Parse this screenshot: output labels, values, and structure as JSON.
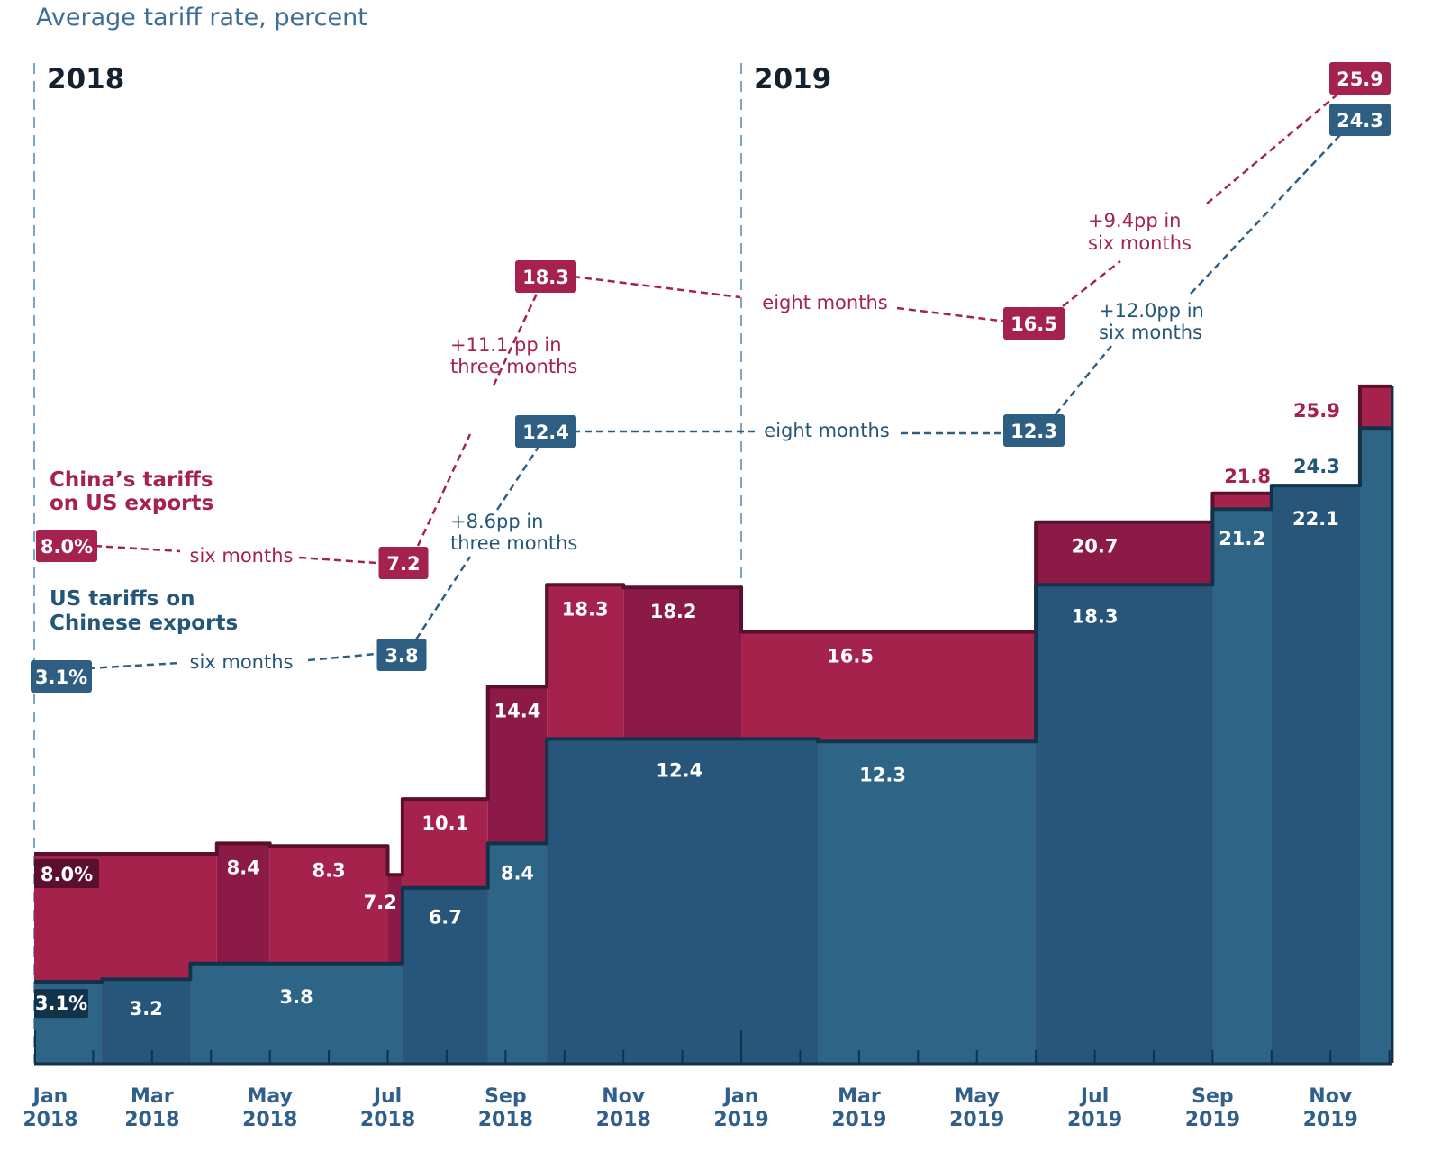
{
  "chart_data": {
    "type": "area",
    "subtype": "overlapping step area",
    "title": "Average tariff rate, percent",
    "xlabel": "",
    "ylabel": "Average tariff rate, percent",
    "x_range": [
      "Jan 2018",
      "Dec 2019"
    ],
    "ylim": [
      0,
      27
    ],
    "grid": false,
    "year_markers": [
      {
        "label": "2018",
        "month_index": 0
      },
      {
        "label": "2019",
        "month_index": 12
      }
    ],
    "x_ticks": [
      {
        "month": "Jan",
        "year": "2018",
        "month_index": 0
      },
      {
        "month": "Mar",
        "year": "2018",
        "month_index": 2
      },
      {
        "month": "May",
        "year": "2018",
        "month_index": 4
      },
      {
        "month": "Jul",
        "year": "2018",
        "month_index": 6
      },
      {
        "month": "Sep",
        "year": "2018",
        "month_index": 8
      },
      {
        "month": "Nov",
        "year": "2018",
        "month_index": 10
      },
      {
        "month": "Jan",
        "year": "2019",
        "month_index": 12
      },
      {
        "month": "Mar",
        "year": "2019",
        "month_index": 14
      },
      {
        "month": "May",
        "year": "2019",
        "month_index": 16
      },
      {
        "month": "Jul",
        "year": "2019",
        "month_index": 18
      },
      {
        "month": "Sep",
        "year": "2019",
        "month_index": 20
      },
      {
        "month": "Nov",
        "year": "2019",
        "month_index": 22
      }
    ],
    "series": [
      {
        "name": "China's tariffs on US exports",
        "legend_lines": [
          "China’s tariffs",
          "on US exports"
        ],
        "color": "#a5224c",
        "color_alt": "#8c1a47",
        "outline": "#5a0f2c",
        "steps": [
          {
            "start": 0,
            "end": 3.1,
            "value": 8.0,
            "label": "8.0%"
          },
          {
            "start": 3.1,
            "end": 4.0,
            "value": 8.4,
            "label": "8.4"
          },
          {
            "start": 4.0,
            "end": 6.0,
            "value": 8.3,
            "label": "8.3"
          },
          {
            "start": 6.0,
            "end": 6.25,
            "value": 7.2,
            "label": "7.2"
          },
          {
            "start": 6.25,
            "end": 7.7,
            "value": 10.1,
            "label": "10.1"
          },
          {
            "start": 7.7,
            "end": 8.7,
            "value": 14.4,
            "label": "14.4"
          },
          {
            "start": 8.7,
            "end": 10.0,
            "value": 18.3,
            "label": "18.3"
          },
          {
            "start": 10.0,
            "end": 12.0,
            "value": 18.2,
            "label": "18.2"
          },
          {
            "start": 12.0,
            "end": 17.0,
            "value": 16.5,
            "label": "16.5"
          },
          {
            "start": 17.0,
            "end": 20.0,
            "value": 20.7,
            "label": "20.7"
          },
          {
            "start": 20.0,
            "end": 21.0,
            "value": 21.8,
            "label": "21.8"
          },
          {
            "start": 21.0,
            "end": 22.5,
            "value": 21.8,
            "label": ""
          },
          {
            "start": 22.5,
            "end": 23.05,
            "value": 25.9,
            "label": "25.9"
          }
        ]
      },
      {
        "name": "US tariffs on Chinese exports",
        "legend_lines": [
          "US tariffs on",
          "Chinese exports"
        ],
        "color": "#2e6485",
        "color_alt": "#27567a",
        "outline": "#12324a",
        "steps": [
          {
            "start": 0,
            "end": 1.15,
            "value": 3.1,
            "label": "3.1%"
          },
          {
            "start": 1.15,
            "end": 2.65,
            "value": 3.2,
            "label": "3.2"
          },
          {
            "start": 2.65,
            "end": 6.25,
            "value": 3.8,
            "label": "3.8"
          },
          {
            "start": 6.25,
            "end": 7.7,
            "value": 6.7,
            "label": "6.7"
          },
          {
            "start": 7.7,
            "end": 8.7,
            "value": 8.4,
            "label": "8.4"
          },
          {
            "start": 8.7,
            "end": 13.3,
            "value": 12.4,
            "label": "12.4"
          },
          {
            "start": 13.3,
            "end": 17.0,
            "value": 12.3,
            "label": "12.3"
          },
          {
            "start": 17.0,
            "end": 20.0,
            "value": 18.3,
            "label": "18.3"
          },
          {
            "start": 20.0,
            "end": 21.0,
            "value": 21.2,
            "label": "21.2"
          },
          {
            "start": 21.0,
            "end": 22.5,
            "value": 22.1,
            "label": "22.1"
          },
          {
            "start": 22.5,
            "end": 23.05,
            "value": 24.3,
            "label": "24.3"
          }
        ]
      }
    ],
    "outside_labels": [
      {
        "series": 0,
        "text": "21.8",
        "note": "above Sep 2019 China step"
      },
      {
        "series": 0,
        "text": "25.9",
        "note": "above Oct-Nov 2019"
      },
      {
        "series": 1,
        "text": "24.3",
        "note": "above Oct-Nov 2019"
      }
    ],
    "annotations": {
      "china": [
        {
          "value": "8.0%",
          "role": "start"
        },
        {
          "value": "7.2",
          "role": "point"
        },
        {
          "value": "18.3",
          "role": "point"
        },
        {
          "value": "16.5",
          "role": "point"
        },
        {
          "value": "25.9",
          "role": "end"
        }
      ],
      "china_links": [
        {
          "text": "six months"
        },
        {
          "text": "+11.1pp in three months",
          "lines": [
            "+11.1 pp in",
            "three months"
          ]
        },
        {
          "text": "eight months"
        },
        {
          "text": "+9.4pp in six months",
          "lines": [
            "+9.4pp in",
            "six months"
          ]
        }
      ],
      "us": [
        {
          "value": "3.1%",
          "role": "start"
        },
        {
          "value": "3.8",
          "role": "point"
        },
        {
          "value": "12.4",
          "role": "point"
        },
        {
          "value": "12.3",
          "role": "point"
        },
        {
          "value": "24.3",
          "role": "end"
        }
      ],
      "us_links": [
        {
          "text": "six months"
        },
        {
          "text": "+8.6pp in three months",
          "lines": [
            "+8.6pp in",
            "three months"
          ]
        },
        {
          "text": "eight months"
        },
        {
          "text": "+12.0pp in six months",
          "lines": [
            "+12.0pp in",
            "six months"
          ]
        }
      ]
    }
  }
}
